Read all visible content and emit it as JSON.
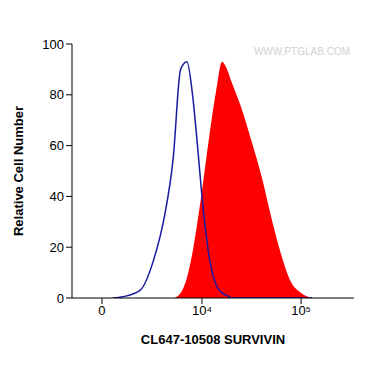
{
  "chart_data": {
    "type": "histogram",
    "x_label": "CL647-10508 SURVIVIN",
    "y_label": "Relative Cell Number",
    "annotations": [
      "WWW.PTGLAB.COM"
    ],
    "log": "x",
    "grid": false,
    "xlim": [
      -1500,
      340000
    ],
    "xticks": [
      0,
      {
        "value": 10000,
        "label": "10⁴"
      },
      {
        "value": 100000,
        "label": "10⁵"
      }
    ],
    "ylim": [
      0,
      100
    ],
    "yticks": [
      0,
      20,
      40,
      60,
      80,
      100
    ],
    "x": [
      500,
      1000,
      2000,
      3000,
      4000,
      5000,
      6000,
      7000,
      8000,
      9000,
      10000,
      12000,
      14000,
      16000,
      18000,
      20000,
      25000,
      30000,
      40000,
      50000,
      60000,
      80000,
      100000,
      130000
    ],
    "series": [
      {
        "color": "#1a1aa0",
        "type": "line",
        "values": [
          0,
          0.5,
          3,
          15,
          32,
          55,
          90,
          93,
          80,
          60,
          40,
          15,
          5,
          2,
          1,
          0,
          0,
          0,
          0,
          0,
          0,
          0,
          0,
          0
        ]
      },
      {
        "color": "#ff0000",
        "type": "area",
        "values": [
          0,
          0,
          0,
          0,
          0,
          0,
          2,
          8,
          18,
          30,
          42,
          65,
          82,
          93,
          90,
          85,
          75,
          65,
          48,
          32,
          20,
          6,
          2,
          0
        ]
      }
    ]
  }
}
